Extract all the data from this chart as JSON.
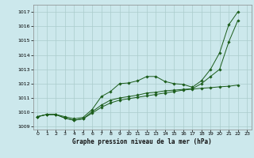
{
  "background_color": "#cce8ec",
  "grid_color": "#aacccc",
  "line_color": "#1a5c1a",
  "marker_color": "#1a5c1a",
  "title": "Graphe pression niveau de la mer (hPa)",
  "ylim": [
    1008.8,
    1017.5
  ],
  "xlim": [
    -0.5,
    23.5
  ],
  "yticks": [
    1009,
    1010,
    1011,
    1012,
    1013,
    1014,
    1015,
    1016,
    1017
  ],
  "xticks": [
    0,
    1,
    2,
    3,
    4,
    5,
    6,
    7,
    8,
    9,
    10,
    11,
    12,
    13,
    14,
    15,
    16,
    17,
    18,
    19,
    20,
    21,
    22,
    23
  ],
  "s1_x": [
    0,
    1,
    2,
    3,
    4,
    5,
    6,
    7,
    8,
    9,
    10,
    11,
    12,
    13,
    14,
    15,
    16,
    17,
    18,
    19,
    20,
    21,
    22
  ],
  "s1_y": [
    1009.7,
    1009.85,
    1009.85,
    1009.7,
    1009.55,
    1009.65,
    1010.2,
    1011.1,
    1011.45,
    1012.0,
    1012.05,
    1012.2,
    1012.5,
    1012.5,
    1012.15,
    1012.0,
    1011.95,
    1011.75,
    1012.2,
    1013.0,
    1014.15,
    1016.1,
    1017.0
  ],
  "s2_x": [
    0,
    1,
    2,
    3,
    4,
    5,
    6,
    7,
    8,
    9,
    10,
    11,
    12,
    13,
    14,
    15,
    16,
    17,
    18,
    19,
    20,
    21,
    22
  ],
  "s2_y": [
    1009.7,
    1009.85,
    1009.85,
    1009.6,
    1009.45,
    1009.55,
    1010.05,
    1010.5,
    1010.85,
    1011.0,
    1011.1,
    1011.2,
    1011.35,
    1011.4,
    1011.5,
    1011.55,
    1011.6,
    1011.65,
    1012.0,
    1012.5,
    1013.0,
    1014.9,
    1016.4
  ],
  "s3_x": [
    0,
    1,
    2,
    3,
    4,
    5,
    6,
    7,
    8,
    9,
    10,
    11,
    12,
    13,
    14,
    15,
    16,
    17,
    18,
    19,
    20,
    21,
    22
  ],
  "s3_y": [
    1009.7,
    1009.85,
    1009.85,
    1009.6,
    1009.45,
    1009.55,
    1009.95,
    1010.35,
    1010.65,
    1010.85,
    1010.95,
    1011.05,
    1011.15,
    1011.25,
    1011.35,
    1011.45,
    1011.55,
    1011.62,
    1011.68,
    1011.72,
    1011.78,
    1011.82,
    1011.9
  ]
}
